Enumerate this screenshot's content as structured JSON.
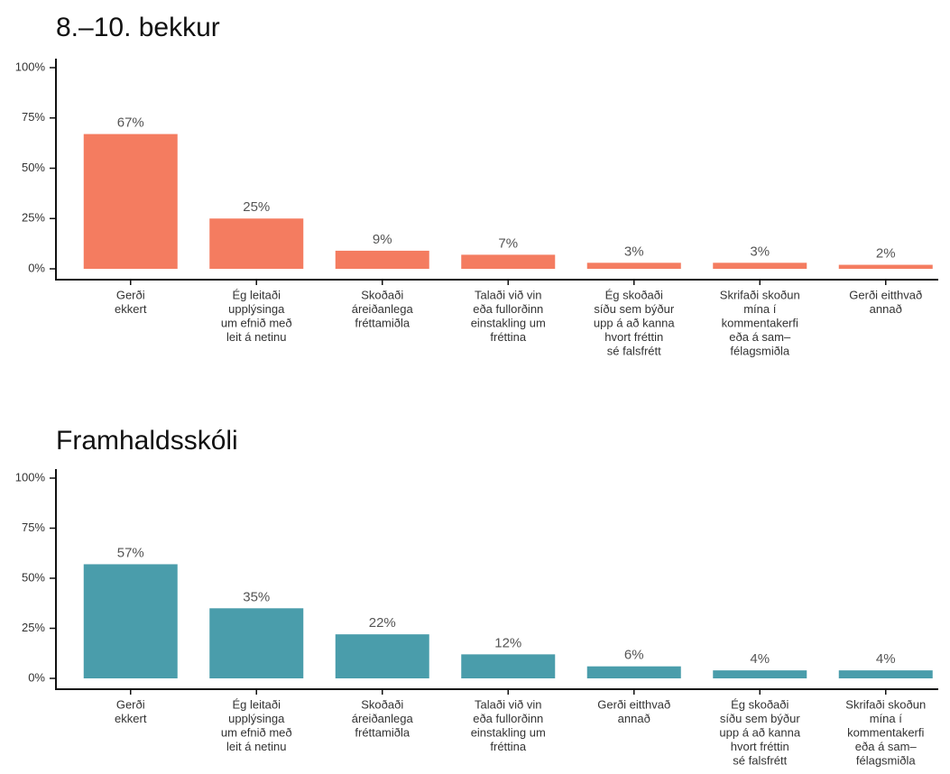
{
  "chart_data": [
    {
      "type": "bar",
      "title": "8.–10. bekkur",
      "color": "#f47c60",
      "categories": [
        [
          "Gerði",
          "ekkert"
        ],
        [
          "Ég leitaði",
          "upplýsinga",
          "um efnið með",
          "leit á netinu"
        ],
        [
          "Skoðaði",
          "áreiðanlega",
          "fréttamiðla"
        ],
        [
          "Talaði við vin",
          "eða fullorðinn",
          "einstakling um",
          "fréttina"
        ],
        [
          "Ég skoðaði",
          "síðu sem býður",
          "upp á að kanna",
          "hvort fréttin",
          "sé falsfrétt"
        ],
        [
          "Skrifaði skoðun",
          "mína í",
          "kommentakerfi",
          "eða á sam–",
          "félagsmiðla"
        ],
        [
          "Gerði eitthvað",
          "annað"
        ]
      ],
      "values": [
        67,
        25,
        9,
        7,
        3,
        3,
        2
      ],
      "value_labels": [
        "67%",
        "25%",
        "9%",
        "7%",
        "3%",
        "3%",
        "2%"
      ],
      "ylim": [
        0,
        100
      ],
      "yticks": [
        {
          "value": 0,
          "label": "0%"
        },
        {
          "value": 25,
          "label": "25%"
        },
        {
          "value": 50,
          "label": "50%"
        },
        {
          "value": 75,
          "label": "75%"
        },
        {
          "value": 100,
          "label": "100%"
        }
      ]
    },
    {
      "type": "bar",
      "title": "Framhaldsskóli",
      "color": "#4a9dab",
      "categories": [
        [
          "Gerði",
          "ekkert"
        ],
        [
          "Ég leitaði",
          "upplýsinga",
          "um efnið með",
          "leit á netinu"
        ],
        [
          "Skoðaði",
          "áreiðanlega",
          "fréttamiðla"
        ],
        [
          "Talaði við vin",
          "eða fullorðinn",
          "einstakling um",
          "fréttina"
        ],
        [
          "Gerði eitthvað",
          "annað"
        ],
        [
          "Ég skoðaði",
          "síðu sem býður",
          "upp á að kanna",
          "hvort fréttin",
          "sé falsfrétt"
        ],
        [
          "Skrifaði skoðun",
          "mína í",
          "kommentakerfi",
          "eða á sam–",
          "félagsmiðla"
        ]
      ],
      "values": [
        57,
        35,
        22,
        12,
        6,
        4,
        4
      ],
      "value_labels": [
        "57%",
        "35%",
        "22%",
        "12%",
        "6%",
        "4%",
        "4%"
      ],
      "ylim": [
        0,
        100
      ],
      "yticks": [
        {
          "value": 0,
          "label": "0%"
        },
        {
          "value": 25,
          "label": "25%"
        },
        {
          "value": 50,
          "label": "50%"
        },
        {
          "value": 75,
          "label": "75%"
        },
        {
          "value": 100,
          "label": "100%"
        }
      ]
    }
  ]
}
